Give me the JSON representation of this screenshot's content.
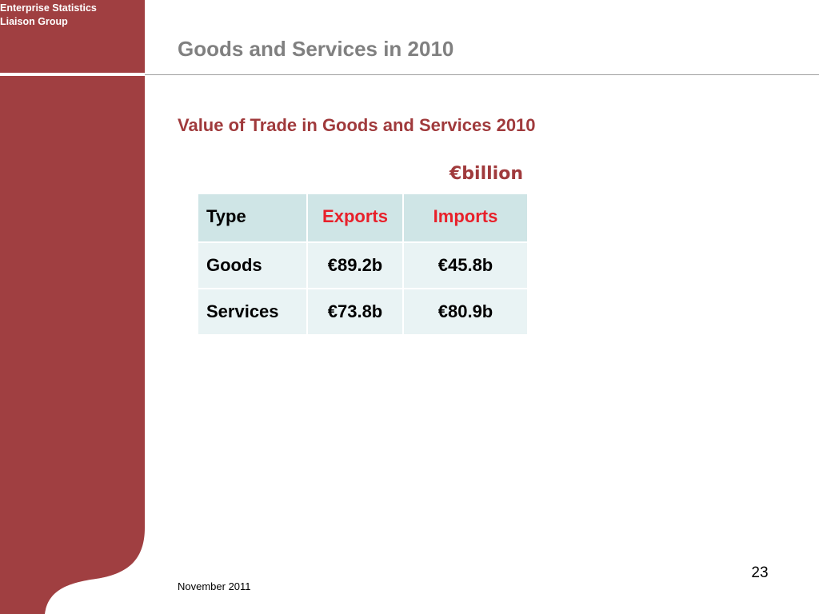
{
  "sidebar": {
    "org_name_line1": "Enterprise Statistics",
    "org_name_line2": "Liaison Group",
    "color": "#a03f41"
  },
  "header": {
    "title": "Goods and Services in 2010"
  },
  "main": {
    "table_title": "Value of Trade in Goods and Services 2010",
    "unit_label": "€billion",
    "table": {
      "headers": [
        "Type",
        "Exports",
        "Imports"
      ],
      "rows": [
        [
          "Goods",
          "€89.2b",
          "€45.8b"
        ],
        [
          "Services",
          "€73.8b",
          "€80.9b"
        ]
      ]
    }
  },
  "footer": {
    "date": "November 2011",
    "page_number": "23"
  },
  "colors": {
    "accent": "#a03a3c",
    "header_highlight": "#e8202a",
    "header_cell_bg": "#cfe5e6",
    "body_cell_bg": "#e9f3f4",
    "title_gray": "#808080"
  }
}
